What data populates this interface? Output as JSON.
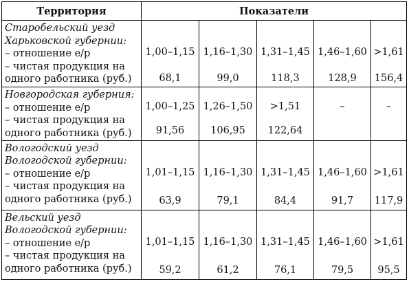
{
  "header": {
    "territory": "Территория",
    "indicators": "Показатели"
  },
  "rows": [
    {
      "name_lines": [
        "Старобельский уезд",
        "Харьковской губернии:"
      ],
      "ratio_label": "– отношение е/р",
      "product_label_1": "– чистая продукция на",
      "product_label_2": "одного работника (руб.)",
      "ratios": [
        "1,00–1,15",
        "1,16–1,30",
        "1,31–1,45",
        "1,46–1,60",
        ">1,61"
      ],
      "products": [
        "68,1",
        "99,0",
        "118,3",
        "128,9",
        "156,4"
      ]
    },
    {
      "name_lines": [
        "Новгородская губерния:"
      ],
      "ratio_label": "– отношение е/р",
      "product_label_1": "– чистая продукция на",
      "product_label_2": "одного работника (руб.)",
      "ratios": [
        "1,00–1,25",
        "1,26–1,50",
        ">1,51",
        "–",
        "–"
      ],
      "products": [
        "91,56",
        "106,95",
        "122,64",
        "",
        ""
      ]
    },
    {
      "name_lines": [
        "Вологодский уезд",
        "Вологодской губернии:"
      ],
      "ratio_label": "– отношение е/р",
      "product_label_1": "– чистая продукция на",
      "product_label_2": "одного работника (руб.)",
      "ratios": [
        "1,01–1,15",
        "1,16–1,30",
        "1,31–1,45",
        "1,46–1,60",
        ">1,61"
      ],
      "products": [
        "63,9",
        "79,1",
        "84,4",
        "91,7",
        "117,9"
      ]
    },
    {
      "name_lines": [
        "Вельский уезд",
        "Вологодской губернии:"
      ],
      "ratio_label": "– отношение е/р",
      "product_label_1": "– чистая продукция на",
      "product_label_2": "одного работника (руб.)",
      "ratios": [
        "1,01–1,15",
        "1,16–1,30",
        "1,31–1,45",
        "1,46–1,60",
        ">1,61"
      ],
      "products": [
        "59,2",
        "61,2",
        "76,1",
        "79,5",
        "95,5"
      ]
    }
  ]
}
